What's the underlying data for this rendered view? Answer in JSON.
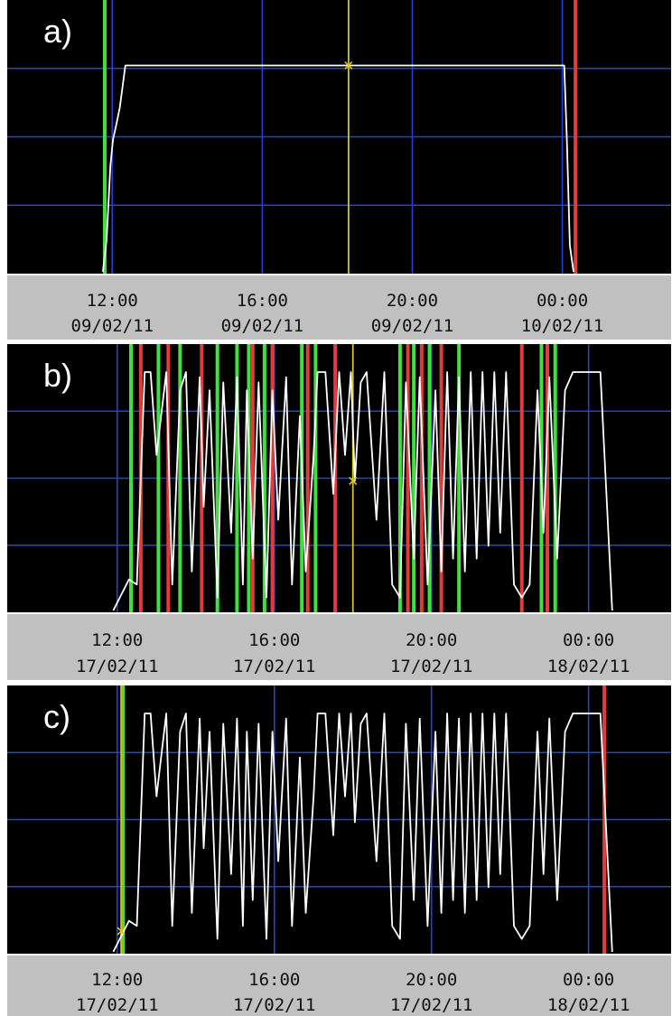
{
  "chart_data": [
    {
      "panel_label": "a)",
      "type": "line",
      "x_ticks": [
        {
          "time": "12:00",
          "date": "09/02/11"
        },
        {
          "time": "16:00",
          "date": "09/02/11"
        },
        {
          "time": "20:00",
          "date": "09/02/11"
        },
        {
          "time": "00:00",
          "date": "10/02/11"
        }
      ],
      "xlim_hours": [
        9.2,
        26.9
      ],
      "grid": true,
      "marker_lines": {
        "green": [
          11.8
        ],
        "red": [
          24.35
        ],
        "yellow": [
          18.3
        ]
      },
      "yellow_marker_point": {
        "x": 18.3,
        "y": 0.78
      },
      "series": [
        {
          "color": "#ffffff",
          "x": [
            11.75,
            11.85,
            11.95,
            12.02,
            12.1,
            12.2,
            12.35,
            24.05,
            24.12,
            24.2,
            24.3
          ],
          "y": [
            0.0,
            0.12,
            0.4,
            0.5,
            0.55,
            0.62,
            0.78,
            0.78,
            0.5,
            0.1,
            0.0
          ]
        }
      ]
    },
    {
      "panel_label": "b)",
      "type": "line",
      "x_ticks": [
        {
          "time": "12:00",
          "date": "17/02/11"
        },
        {
          "time": "16:00",
          "date": "17/02/11"
        },
        {
          "time": "20:00",
          "date": "17/02/11"
        },
        {
          "time": "00:00",
          "date": "18/02/11"
        }
      ],
      "xlim_hours": [
        9.2,
        26.1
      ],
      "grid": true,
      "marker_lines": {
        "green": [
          12.35,
          13.05,
          13.6,
          14.55,
          15.05,
          15.35,
          15.75,
          16.7,
          17.05,
          19.2,
          19.55,
          19.95,
          20.7,
          22.8,
          23.15
        ],
        "red": [
          12.6,
          13.3,
          14.15,
          15.45,
          15.95,
          16.85,
          17.55,
          19.4,
          19.75,
          20.25,
          22.3,
          22.95
        ],
        "yellow": [
          18.0
        ]
      },
      "yellow_marker_point": {
        "x": 18.0,
        "y": 0.5
      },
      "series": [
        {
          "color": "#ffffff",
          "x": [
            11.9,
            12.3,
            12.5,
            12.7,
            12.85,
            13.0,
            13.25,
            13.4,
            13.6,
            13.75,
            13.9,
            14.1,
            14.2,
            14.35,
            14.55,
            14.7,
            14.9,
            15.05,
            15.2,
            15.3,
            15.45,
            15.6,
            15.8,
            15.95,
            16.1,
            16.3,
            16.45,
            16.65,
            16.8,
            17.0,
            17.1,
            17.3,
            17.5,
            17.65,
            17.8,
            17.95,
            18.05,
            18.2,
            18.35,
            18.6,
            18.8,
            19.0,
            19.2,
            19.35,
            19.55,
            19.7,
            19.9,
            20.1,
            20.25,
            20.4,
            20.55,
            20.7,
            20.85,
            21.0,
            21.15,
            21.3,
            21.45,
            21.6,
            21.75,
            21.9,
            22.1,
            22.3,
            22.5,
            22.7,
            22.85,
            23.0,
            23.2,
            23.4,
            23.6,
            23.8,
            24.3,
            24.6
          ],
          "y": [
            0.0,
            0.12,
            0.1,
            0.92,
            0.92,
            0.6,
            0.92,
            0.1,
            0.85,
            0.92,
            0.15,
            0.9,
            0.4,
            0.85,
            0.05,
            0.88,
            0.3,
            0.9,
            0.1,
            0.85,
            0.2,
            0.88,
            0.05,
            0.85,
            0.35,
            0.9,
            0.1,
            0.75,
            0.15,
            0.6,
            0.92,
            0.92,
            0.45,
            0.92,
            0.6,
            0.92,
            0.5,
            0.88,
            0.92,
            0.35,
            0.92,
            0.1,
            0.05,
            0.88,
            0.2,
            0.9,
            0.1,
            0.85,
            0.15,
            0.92,
            0.2,
            0.9,
            0.15,
            0.92,
            0.2,
            0.92,
            0.25,
            0.92,
            0.3,
            0.92,
            0.1,
            0.05,
            0.1,
            0.85,
            0.3,
            0.9,
            0.2,
            0.85,
            0.92,
            0.92,
            0.92,
            0.0
          ]
        }
      ]
    },
    {
      "panel_label": "c)",
      "type": "line",
      "x_ticks": [
        {
          "time": "12:00",
          "date": "17/02/11"
        },
        {
          "time": "16:00",
          "date": "17/02/11"
        },
        {
          "time": "20:00",
          "date": "17/02/11"
        },
        {
          "time": "00:00",
          "date": "18/02/11"
        }
      ],
      "xlim_hours": [
        9.2,
        26.1
      ],
      "grid": true,
      "marker_lines": {
        "green": [
          12.15
        ],
        "red": [
          24.4
        ],
        "yellow": [
          12.1
        ]
      },
      "yellow_marker_point": {
        "x": 12.1,
        "y": 0.08
      },
      "series": [
        {
          "color": "#ffffff",
          "x": [
            11.9,
            12.3,
            12.5,
            12.7,
            12.85,
            13.0,
            13.25,
            13.4,
            13.6,
            13.75,
            13.9,
            14.1,
            14.2,
            14.35,
            14.55,
            14.7,
            14.9,
            15.05,
            15.2,
            15.3,
            15.45,
            15.6,
            15.8,
            15.95,
            16.1,
            16.3,
            16.45,
            16.65,
            16.8,
            17.0,
            17.1,
            17.3,
            17.5,
            17.65,
            17.8,
            17.95,
            18.05,
            18.2,
            18.35,
            18.6,
            18.8,
            19.0,
            19.2,
            19.35,
            19.55,
            19.7,
            19.9,
            20.1,
            20.25,
            20.4,
            20.55,
            20.7,
            20.85,
            21.0,
            21.15,
            21.3,
            21.45,
            21.6,
            21.75,
            21.9,
            22.1,
            22.3,
            22.5,
            22.7,
            22.85,
            23.0,
            23.2,
            23.4,
            23.6,
            23.8,
            24.3,
            24.6
          ],
          "y": [
            0.0,
            0.12,
            0.1,
            0.92,
            0.92,
            0.6,
            0.92,
            0.1,
            0.85,
            0.92,
            0.15,
            0.9,
            0.4,
            0.85,
            0.05,
            0.88,
            0.3,
            0.9,
            0.1,
            0.85,
            0.2,
            0.88,
            0.05,
            0.85,
            0.35,
            0.9,
            0.1,
            0.75,
            0.15,
            0.6,
            0.92,
            0.92,
            0.45,
            0.92,
            0.6,
            0.92,
            0.5,
            0.88,
            0.92,
            0.35,
            0.92,
            0.1,
            0.05,
            0.88,
            0.2,
            0.9,
            0.1,
            0.85,
            0.15,
            0.92,
            0.2,
            0.9,
            0.15,
            0.92,
            0.2,
            0.92,
            0.25,
            0.92,
            0.3,
            0.92,
            0.1,
            0.05,
            0.1,
            0.85,
            0.3,
            0.9,
            0.2,
            0.85,
            0.92,
            0.92,
            0.92,
            0.0
          ]
        }
      ]
    }
  ],
  "colors": {
    "plot_background": "#000000",
    "grid": "#2a3fd6",
    "trace": "#ffffff",
    "green_marker": "#3fe03f",
    "red_marker": "#e23b3b",
    "yellow_marker": "#d8c21c",
    "axis_background": "#c0c0c0"
  }
}
